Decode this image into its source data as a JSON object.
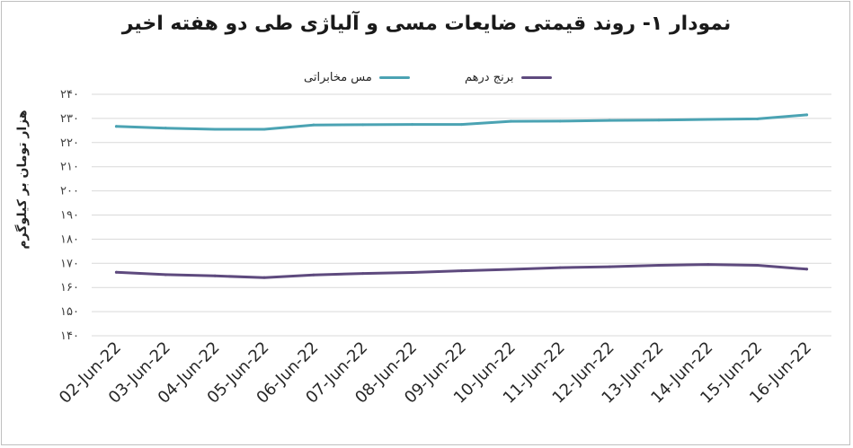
{
  "chart_data": {
    "type": "line",
    "title": "نمودار ۱- روند قیمتی ضایعات مسی و آلیاژی طی دو هفته اخیر",
    "ylabel": "هزار تومان بر کیلوگرم",
    "xlabel": "",
    "ylim": [
      140,
      240
    ],
    "yticks": [
      140,
      150,
      160,
      170,
      180,
      190,
      200,
      210,
      220,
      230,
      240
    ],
    "ytick_labels": [
      "۱۴۰",
      "۱۵۰",
      "۱۶۰",
      "۱۷۰",
      "۱۸۰",
      "۱۹۰",
      "۲۰۰",
      "۲۱۰",
      "۲۲۰",
      "۲۳۰",
      "۲۴۰"
    ],
    "categories": [
      "02-Jun-22",
      "03-Jun-22",
      "04-Jun-22",
      "05-Jun-22",
      "06-Jun-22",
      "07-Jun-22",
      "08-Jun-22",
      "09-Jun-22",
      "10-Jun-22",
      "11-Jun-22",
      "12-Jun-22",
      "13-Jun-22",
      "14-Jun-22",
      "15-Jun-22",
      "16-Jun-22"
    ],
    "grid": true,
    "legend_position": "top",
    "series": [
      {
        "name": "مس مخابراتی",
        "color": "#4ba3b3",
        "values": [
          226.7,
          226.0,
          225.5,
          225.5,
          227.3,
          227.4,
          227.5,
          227.5,
          228.8,
          228.9,
          229.2,
          229.3,
          229.6,
          229.8,
          231.5
        ]
      },
      {
        "name": "برنج درهم",
        "color": "#5e4a7e",
        "values": [
          166.3,
          165.3,
          164.8,
          164.1,
          165.2,
          165.8,
          166.2,
          166.9,
          167.5,
          168.2,
          168.6,
          169.2,
          169.5,
          169.2,
          167.6
        ]
      }
    ]
  }
}
